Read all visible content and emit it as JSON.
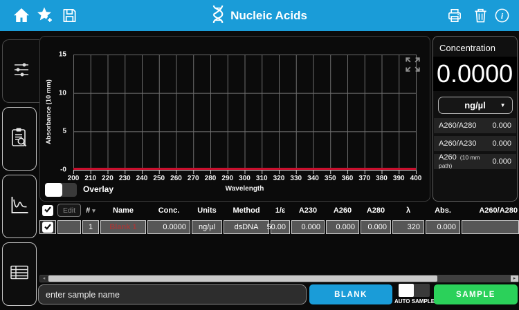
{
  "header": {
    "title": "Nucleic Acids"
  },
  "chart_data": {
    "type": "line",
    "title": "",
    "xlabel": "Wavelength",
    "ylabel": "Absorbance (10 mm)",
    "x_ticks": [
      200,
      210,
      220,
      230,
      240,
      250,
      260,
      270,
      280,
      290,
      300,
      310,
      320,
      330,
      340,
      350,
      360,
      370,
      380,
      390,
      400
    ],
    "y_tick_labels": [
      "15",
      "10",
      "5",
      "-0"
    ],
    "xlim": [
      200,
      400
    ],
    "ylim": [
      0,
      15
    ],
    "grid": true,
    "legend": "none",
    "series": [
      {
        "name": "blank baseline",
        "color": "#c8102e",
        "y": 0,
        "description": "flat line at zero absorbance across 200-400 nm"
      }
    ]
  },
  "chart_controls": {
    "overlay_label": "Overlay"
  },
  "concentration_panel": {
    "title": "Concentration",
    "value": "0.0000",
    "units": "ng/µl",
    "ratios": [
      {
        "label": "A260/A280",
        "suffix": "",
        "value": "0.000"
      },
      {
        "label": "A260/A230",
        "suffix": "",
        "value": "0.000"
      },
      {
        "label": "A260",
        "suffix": "(10 mm path)",
        "value": "0.000"
      }
    ]
  },
  "table": {
    "edit_label": "Edit",
    "columns": [
      "#",
      "Name",
      "Conc.",
      "Units",
      "Method",
      "1/ε",
      "A230",
      "A260",
      "A280",
      "λ",
      "Abs.",
      "A260/A280"
    ],
    "row": {
      "num": "1",
      "name": "Blank 1",
      "conc": "0.0000",
      "units": "ng/µl",
      "method": "dsDNA",
      "inv_epsilon": "50.00",
      "a230": "0.000",
      "a260": "0.000",
      "a280": "0.000",
      "lambda": "320",
      "abs": "0.000",
      "a260_a280": ""
    }
  },
  "footer": {
    "sample_name_placeholder": "enter sample name",
    "blank_label": "BLANK",
    "auto_sample_label": "AUTO SAMPLE",
    "sample_label": "SAMPLE"
  },
  "icons": {
    "sort_caret": "▾",
    "dropdown_caret": "▼",
    "scroll_left": "◂",
    "scroll_right": "▸"
  },
  "colors": {
    "accent_blue": "#1a9cd8",
    "sample_green": "#2bd15a",
    "baseline_red": "#c8102e",
    "name_red": "#a03a3a"
  }
}
